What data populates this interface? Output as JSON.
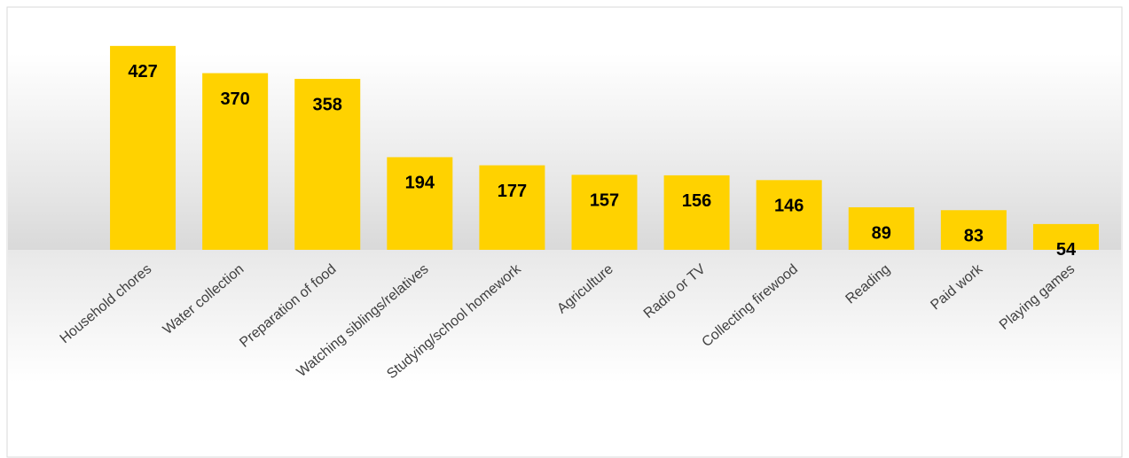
{
  "chart_data": {
    "type": "bar",
    "categories": [
      "Household chores",
      "Water collection",
      "Preparation of food",
      "Watching siblings/relatives",
      "Studying/school homework",
      "Agriculture",
      "Radio or TV",
      "Collecting firewood",
      "Reading",
      "Paid work",
      "Playing games"
    ],
    "values": [
      427,
      370,
      358,
      194,
      177,
      157,
      156,
      146,
      89,
      83,
      54
    ],
    "color": "#ffd200"
  }
}
